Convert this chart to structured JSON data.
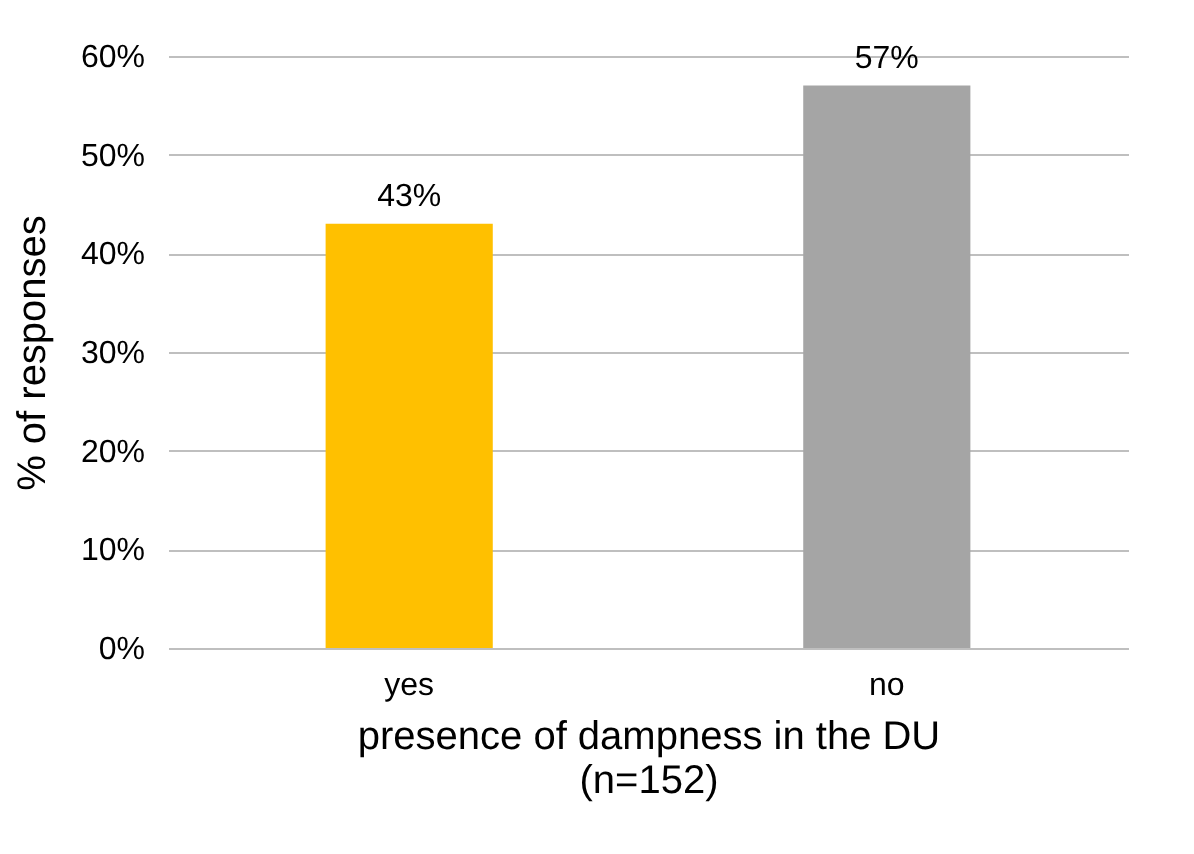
{
  "chart_data": {
    "type": "bar",
    "xlabel": "presence of dampness in the DU\n(n=152)",
    "ylabel": "% of responses",
    "categories": [
      "yes",
      "no"
    ],
    "values": [
      43,
      57
    ],
    "colors": [
      "#ffc000",
      "#a5a5a5"
    ],
    "value_labels": [
      "43%",
      "57%"
    ],
    "ylim": [
      0,
      60
    ],
    "yticks": [
      {
        "value": 0,
        "label": "0%"
      },
      {
        "value": 10,
        "label": "10%"
      },
      {
        "value": 20,
        "label": "20%"
      },
      {
        "value": 30,
        "label": "30%"
      },
      {
        "value": 40,
        "label": "40%"
      },
      {
        "value": 50,
        "label": "50%"
      },
      {
        "value": 60,
        "label": "60%"
      }
    ],
    "grid": "y"
  }
}
